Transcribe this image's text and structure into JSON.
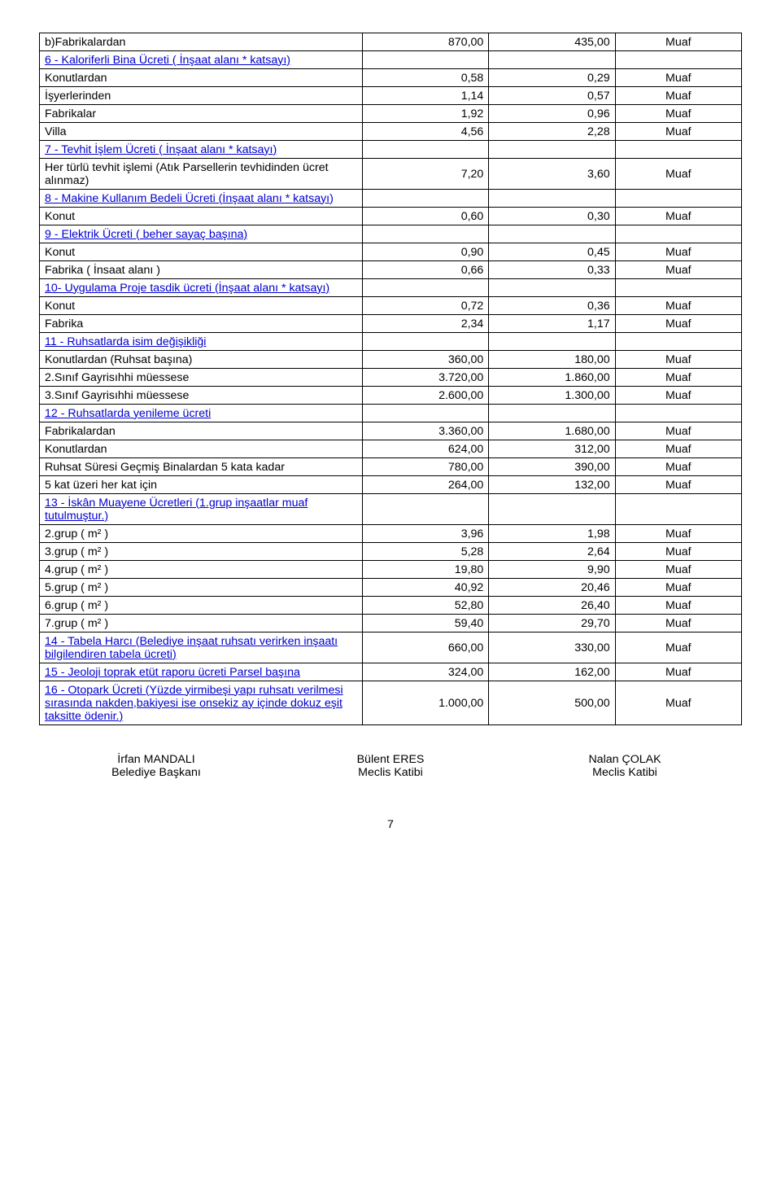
{
  "rows": {
    "r1": {
      "label": "b)Fabrikalardan",
      "v1": "870,00",
      "v2": "435,00",
      "v3": "Muaf"
    },
    "r2": {
      "label": "6 - Kaloriferli Bina Ücreti ( İnşaat alanı * katsayı)"
    },
    "r3": {
      "label": "Konutlardan",
      "v1": "0,58",
      "v2": "0,29",
      "v3": "Muaf"
    },
    "r4": {
      "label": "İşyerlerinden",
      "v1": "1,14",
      "v2": "0,57",
      "v3": "Muaf"
    },
    "r5": {
      "label": "Fabrikalar",
      "v1": "1,92",
      "v2": "0,96",
      "v3": "Muaf"
    },
    "r6": {
      "label": "Villa",
      "v1": "4,56",
      "v2": "2,28",
      "v3": "Muaf"
    },
    "r7": {
      "label": "7 - Tevhit İşlem Ücreti ( İnşaat alanı * katsayı)"
    },
    "r8": {
      "label": "Her türlü tevhit işlemi  (Atık Parsellerin tevhidinden ücret alınmaz)",
      "v1": "7,20",
      "v2": "3,60",
      "v3": "Muaf"
    },
    "r9": {
      "label": "8 - Makine Kullanım Bedeli Ücreti    (İnşaat alanı * katsayı)"
    },
    "r10": {
      "label": "Konut",
      "v1": "0,60",
      "v2": "0,30",
      "v3": "Muaf"
    },
    "r11": {
      "label": "9 - Elektrik Ücreti  ( beher sayaç başına)"
    },
    "r12": {
      "label": "Konut",
      "v1": "0,90",
      "v2": "0,45",
      "v3": "Muaf"
    },
    "r13": {
      "label": "Fabrika   ( İnsaat alanı )",
      "v1": "0,66",
      "v2": "0,33",
      "v3": "Muaf"
    },
    "r14": {
      "label": "10- Uygulama Proje tasdik ücreti  (İnşaat alanı * katsayı)"
    },
    "r15": {
      "label": "Konut",
      "v1": "0,72",
      "v2": "0,36",
      "v3": "Muaf"
    },
    "r16": {
      "label": "Fabrika",
      "v1": "2,34",
      "v2": "1,17",
      "v3": "Muaf"
    },
    "r17": {
      "label": "11 - Ruhsatlarda isim değişikliği"
    },
    "r18": {
      "label": "Konutlardan   (Ruhsat başına)",
      "v1": "360,00",
      "v2": "180,00",
      "v3": "Muaf"
    },
    "r19": {
      "label": "2.Sınıf Gayrisıhhi müessese",
      "v1": "3.720,00",
      "v2": "1.860,00",
      "v3": "Muaf"
    },
    "r20": {
      "label": "3.Sınıf Gayrisıhhi müessese",
      "v1": "2.600,00",
      "v2": "1.300,00",
      "v3": "Muaf"
    },
    "r21": {
      "label": "12 - Ruhsatlarda yenileme ücreti"
    },
    "r22": {
      "label": "Fabrikalardan",
      "v1": "3.360,00",
      "v2": "1.680,00",
      "v3": "Muaf"
    },
    "r23": {
      "label": "Konutlardan",
      "v1": "624,00",
      "v2": "312,00",
      "v3": "Muaf"
    },
    "r24": {
      "label": "Ruhsat Süresi Geçmiş Binalardan 5 kata kadar",
      "v1": "780,00",
      "v2": "390,00",
      "v3": "Muaf"
    },
    "r25": {
      "label": "5 kat üzeri her kat için",
      "v1": "264,00",
      "v2": "132,00",
      "v3": "Muaf"
    },
    "r26": {
      "label": "13 - İskân Muayene Ücretleri (1.grup inşaatlar muaf tutulmuştur.)"
    },
    "r27": {
      "label": "2.grup ( m² )",
      "v1": "3,96",
      "v2": "1,98",
      "v3": "Muaf"
    },
    "r28": {
      "label": "3.grup ( m² )",
      "v1": "5,28",
      "v2": "2,64",
      "v3": "Muaf"
    },
    "r29": {
      "label": "4.grup ( m² )",
      "v1": "19,80",
      "v2": "9,90",
      "v3": "Muaf"
    },
    "r30": {
      "label": "5.grup ( m² )",
      "v1": "40,92",
      "v2": "20,46",
      "v3": "Muaf"
    },
    "r31": {
      "label": "6.grup ( m² )",
      "v1": "52,80",
      "v2": "26,40",
      "v3": "Muaf"
    },
    "r32": {
      "label": "7.grup ( m² )",
      "v1": "59,40",
      "v2": "29,70",
      "v3": "Muaf"
    },
    "r33": {
      "label": "14 - Tabela Harcı (Belediye inşaat ruhsatı verirken inşaatı bilgilendiren tabela ücreti)",
      "v1": "660,00",
      "v2": "330,00",
      "v3": "Muaf"
    },
    "r34": {
      "label": "15 - Jeoloji toprak etüt raporu ücreti Parsel başına",
      "v1": "324,00",
      "v2": "162,00",
      "v3": "Muaf"
    },
    "r35": {
      "label": "16 - Otopark Ücreti (Yüzde yirmibeşi yapı ruhsatı verilmesi sırasında nakden,bakiyesi ise onsekiz ay içinde dokuz eşit taksitte ödenir.)",
      "v1": "1.000,00",
      "v2": "500,00",
      "v3": "Muaf"
    }
  },
  "signatures": {
    "s1": {
      "name": "İrfan MANDALI",
      "title": "Belediye Başkanı"
    },
    "s2": {
      "name": "Bülent ERES",
      "title": "Meclis Katibi"
    },
    "s3": {
      "name": "Nalan ÇOLAK",
      "title": "Meclis Katibi"
    }
  },
  "pageNumber": "7"
}
